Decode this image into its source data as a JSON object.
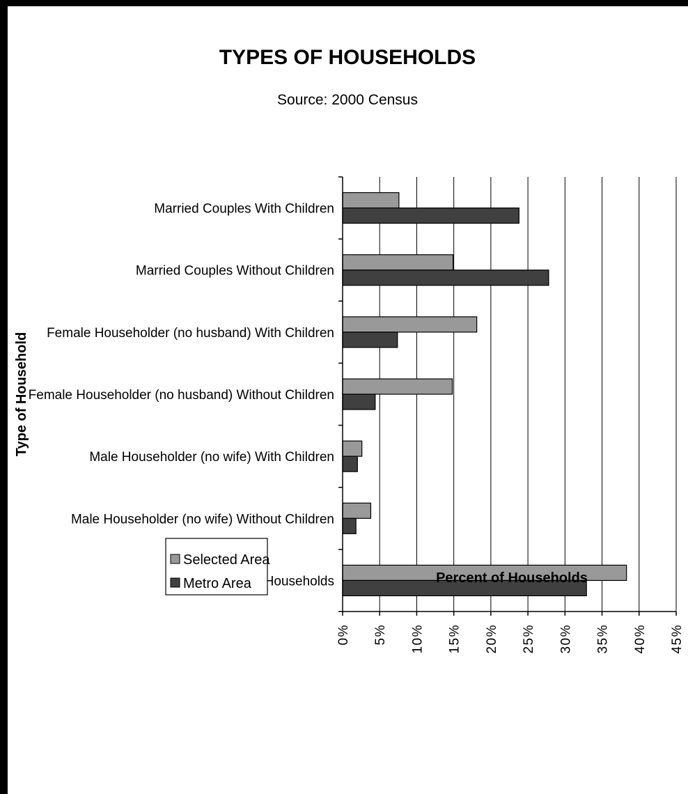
{
  "chart_data": {
    "type": "bar",
    "orientation": "horizontal",
    "title": "TYPES OF HOUSEHOLDS",
    "subtitle": "Source: 2000 Census",
    "xlabel": "Percent of Households",
    "ylabel": "Type of Household",
    "xlim": [
      0,
      45
    ],
    "x_ticks": [
      "0%",
      "5%",
      "10%",
      "15%",
      "20%",
      "25%",
      "30%",
      "35%",
      "40%",
      "45%"
    ],
    "grid": "vertical",
    "legend_position": "bottom-left",
    "categories": [
      "Married Couples With Children",
      "Married Couples Without Children",
      "Female Householder (no husband) With Children",
      "Female Householder (no husband) Without Children",
      "Male Householder (no wife) With Children",
      "Male Householder (no wife) Without Children",
      "Non-Family Households"
    ],
    "series": [
      {
        "name": "Selected Area",
        "color": "#999999",
        "values": [
          7.6,
          14.9,
          18.1,
          14.8,
          2.6,
          3.8,
          38.3
        ]
      },
      {
        "name": "Metro Area",
        "color": "#404040",
        "values": [
          23.8,
          27.8,
          7.4,
          4.4,
          2.0,
          1.8,
          32.9
        ]
      }
    ]
  }
}
